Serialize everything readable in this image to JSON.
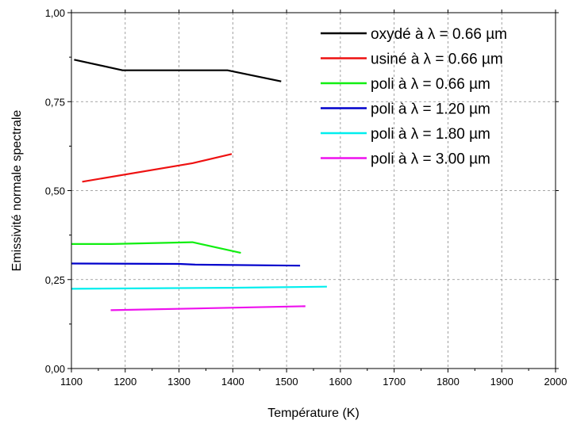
{
  "chart_data": {
    "type": "line",
    "title": "",
    "xlabel": "Température (K)",
    "ylabel": "Emissivité normale spectrale",
    "xlim": [
      1100,
      2000
    ],
    "ylim": [
      0,
      1
    ],
    "x_ticks": [
      1100,
      1200,
      1300,
      1400,
      1500,
      1600,
      1700,
      1800,
      1900,
      2000
    ],
    "x_tick_labels": [
      "1100",
      "1200",
      "1300",
      "1400",
      "1500",
      "1600",
      "1700",
      "1800",
      "1900",
      "2000"
    ],
    "y_ticks": [
      0,
      0.25,
      0.5,
      0.75,
      1.0
    ],
    "y_tick_labels": [
      "0,00",
      "0,25",
      "0,50",
      "0,75",
      "1,00"
    ],
    "grid": "dashed",
    "legend_position": "top-right",
    "series": [
      {
        "name": "oxydé à λ = 0.66 µm",
        "color": "#000000",
        "x": [
          1105,
          1195,
          1390,
          1490
        ],
        "y": [
          0.868,
          0.838,
          0.838,
          0.807
        ]
      },
      {
        "name": "usiné à λ = 0.66 µm",
        "color": "#ee1111",
        "x": [
          1120,
          1325,
          1398
        ],
        "y": [
          0.525,
          0.577,
          0.603
        ]
      },
      {
        "name": "poli à λ = 0.66 µm",
        "color": "#11ee11",
        "x": [
          1100,
          1175,
          1325,
          1415
        ],
        "y": [
          0.35,
          0.35,
          0.355,
          0.325
        ]
      },
      {
        "name": "poli à λ = 1.20 µm",
        "color": "#0000cc",
        "x": [
          1100,
          1300,
          1330,
          1525
        ],
        "y": [
          0.295,
          0.294,
          0.292,
          0.289
        ]
      },
      {
        "name": "poli à λ = 1.80 µm",
        "color": "#00eeee",
        "x": [
          1100,
          1395,
          1575
        ],
        "y": [
          0.224,
          0.227,
          0.23
        ]
      },
      {
        "name": "poli à λ = 3.00 µm",
        "color": "#ee11ee",
        "x": [
          1173,
          1535
        ],
        "y": [
          0.164,
          0.175
        ]
      }
    ]
  }
}
